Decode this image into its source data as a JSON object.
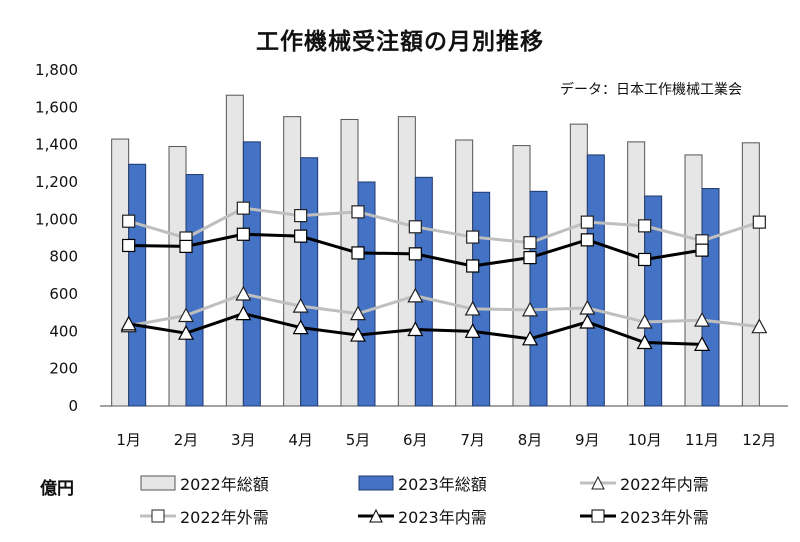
{
  "title": "工作機械受注額の月別推移",
  "source": "データ：日本工作機械工業会",
  "unit": "億円",
  "colors": {
    "bar2022": "#e6e6e6",
    "bar2023": "#4472c4",
    "line2022": "#bfbfbf",
    "line2023": "#000000"
  },
  "legend": {
    "bar2022": "2022年総額",
    "bar2023": "2023年総額",
    "dom2022": "2022年内需",
    "ext2022": "2022年外需",
    "dom2023": "2023年内需",
    "ext2023": "2023年外需"
  },
  "chart_data": {
    "type": "bar",
    "title": "工作機械受注額の月別推移",
    "ylabel": "億円",
    "ylim": [
      0,
      1800
    ],
    "yticks": [
      0,
      200,
      400,
      600,
      800,
      1000,
      1200,
      1400,
      1600,
      1800
    ],
    "ytick_labels": [
      "0",
      "200",
      "400",
      "600",
      "800",
      "1,000",
      "1,200",
      "1,400",
      "1,600",
      "1,800"
    ],
    "categories": [
      "1月",
      "2月",
      "3月",
      "4月",
      "5月",
      "6月",
      "7月",
      "8月",
      "9月",
      "10月",
      "11月",
      "12月"
    ],
    "series": [
      {
        "name": "2022年総額",
        "kind": "bar",
        "values": [
          1430,
          1390,
          1665,
          1550,
          1535,
          1550,
          1425,
          1395,
          1510,
          1415,
          1345,
          1410
        ]
      },
      {
        "name": "2023年総額",
        "kind": "bar",
        "values": [
          1295,
          1240,
          1415,
          1330,
          1200,
          1225,
          1145,
          1150,
          1345,
          1125,
          1165,
          null
        ]
      },
      {
        "name": "2022年内需",
        "kind": "line",
        "marker": "triangle",
        "values": [
          430,
          485,
          600,
          535,
          495,
          590,
          520,
          515,
          525,
          450,
          460,
          425
        ]
      },
      {
        "name": "2022年外需",
        "kind": "line",
        "marker": "square",
        "values": [
          990,
          900,
          1060,
          1020,
          1040,
          960,
          905,
          875,
          985,
          965,
          885,
          985
        ]
      },
      {
        "name": "2023年内需",
        "kind": "line",
        "marker": "triangle",
        "values": [
          440,
          390,
          495,
          420,
          380,
          410,
          400,
          360,
          450,
          340,
          330,
          null
        ]
      },
      {
        "name": "2023年外需",
        "kind": "line",
        "marker": "square",
        "values": [
          860,
          855,
          920,
          910,
          820,
          815,
          750,
          795,
          890,
          785,
          835,
          null
        ]
      }
    ],
    "grid": false,
    "legend_position": "bottom"
  }
}
